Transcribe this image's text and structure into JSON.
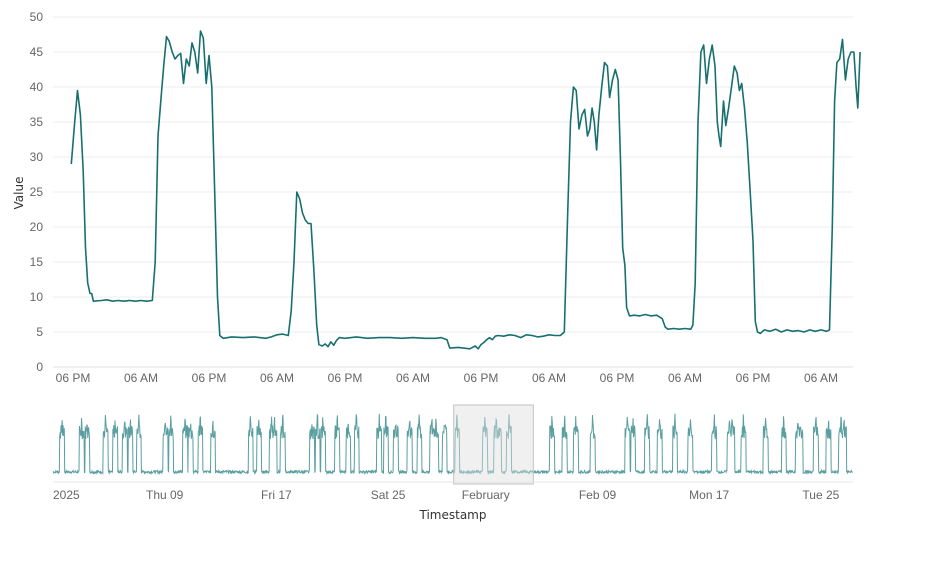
{
  "chart_data": [
    {
      "type": "line",
      "ylabel": "Value",
      "ylim": [
        0,
        50
      ],
      "yticks": [
        0,
        5,
        10,
        15,
        20,
        25,
        30,
        35,
        40,
        45,
        50
      ],
      "xticks": [
        "06 PM",
        "06 AM",
        "06 PM",
        "06 AM",
        "06 PM",
        "06 AM",
        "06 PM",
        "06 AM",
        "06 PM",
        "06 AM",
        "06 PM",
        "06 AM"
      ],
      "x_hours": [
        0,
        12,
        24,
        36,
        48,
        60,
        72,
        84,
        96,
        108,
        120,
        132
      ],
      "grid": true,
      "color": "#17706f",
      "points": [
        [
          -0.3,
          29.0
        ],
        [
          0.3,
          35
        ],
        [
          0.8,
          39.5
        ],
        [
          1.3,
          36
        ],
        [
          1.8,
          28
        ],
        [
          2.2,
          17
        ],
        [
          2.6,
          12
        ],
        [
          3.0,
          10.5
        ],
        [
          3.3,
          10.5
        ],
        [
          3.6,
          9.4
        ],
        [
          5,
          9.5
        ],
        [
          6,
          9.6
        ],
        [
          7,
          9.4
        ],
        [
          8,
          9.5
        ],
        [
          9,
          9.4
        ],
        [
          10,
          9.5
        ],
        [
          11,
          9.4
        ],
        [
          12,
          9.5
        ],
        [
          13,
          9.4
        ],
        [
          14.0,
          9.5
        ],
        [
          14.5,
          15
        ],
        [
          15.0,
          33
        ],
        [
          15.5,
          38
        ],
        [
          16.0,
          43
        ],
        [
          16.5,
          47.2
        ],
        [
          17.0,
          46.5
        ],
        [
          17.5,
          45
        ],
        [
          18.0,
          44
        ],
        [
          18.5,
          44.5
        ],
        [
          19.0,
          44.8
        ],
        [
          19.5,
          40.5
        ],
        [
          20.0,
          44
        ],
        [
          20.5,
          43
        ],
        [
          21.0,
          46.3
        ],
        [
          21.5,
          45
        ],
        [
          22.0,
          42
        ],
        [
          22.5,
          48
        ],
        [
          23.0,
          47
        ],
        [
          23.5,
          40.5
        ],
        [
          24.0,
          44.5
        ],
        [
          24.5,
          40
        ],
        [
          25.0,
          25
        ],
        [
          25.5,
          10
        ],
        [
          25.9,
          4.5
        ],
        [
          26.5,
          4.1
        ],
        [
          28,
          4.3
        ],
        [
          30,
          4.2
        ],
        [
          32,
          4.3
        ],
        [
          34,
          4.1
        ],
        [
          35,
          4.3
        ],
        [
          36.0,
          4.6
        ],
        [
          37.0,
          4.7
        ],
        [
          38.0,
          4.5
        ],
        [
          38.5,
          8
        ],
        [
          39.0,
          15
        ],
        [
          39.5,
          25
        ],
        [
          40.0,
          24
        ],
        [
          40.5,
          22
        ],
        [
          41.0,
          21
        ],
        [
          41.5,
          20.5
        ],
        [
          42.0,
          20.5
        ],
        [
          42.5,
          14
        ],
        [
          43.0,
          6
        ],
        [
          43.4,
          3.2
        ],
        [
          44.0,
          3.0
        ],
        [
          44.5,
          3.3
        ],
        [
          45.0,
          2.9
        ],
        [
          45.5,
          3.6
        ],
        [
          46.0,
          3.1
        ],
        [
          46.5,
          3.8
        ],
        [
          47.0,
          4.2
        ],
        [
          48.0,
          4.1
        ],
        [
          50,
          4.3
        ],
        [
          52,
          4.1
        ],
        [
          54,
          4.2
        ],
        [
          56,
          4.2
        ],
        [
          58,
          4.1
        ],
        [
          60,
          4.2
        ],
        [
          62,
          4.1
        ],
        [
          64,
          4.1
        ],
        [
          65.0,
          4.2
        ],
        [
          66.0,
          3.9
        ],
        [
          66.5,
          2.7
        ],
        [
          68,
          2.8
        ],
        [
          70,
          2.6
        ],
        [
          71.0,
          3.0
        ],
        [
          71.5,
          2.6
        ],
        [
          72.0,
          3.2
        ],
        [
          72.5,
          3.5
        ],
        [
          73.0,
          3.9
        ],
        [
          73.5,
          4.2
        ],
        [
          74.0,
          3.9
        ],
        [
          74.5,
          4.4
        ],
        [
          75.0,
          4.5
        ],
        [
          76.0,
          4.4
        ],
        [
          77.0,
          4.6
        ],
        [
          78.0,
          4.5
        ],
        [
          79.0,
          4.2
        ],
        [
          80.0,
          4.6
        ],
        [
          81.0,
          4.5
        ],
        [
          82.0,
          4.3
        ],
        [
          83.0,
          4.4
        ],
        [
          84.0,
          4.6
        ],
        [
          85.0,
          4.5
        ],
        [
          86.0,
          4.5
        ],
        [
          86.7,
          5.0
        ],
        [
          87.3,
          22
        ],
        [
          87.8,
          35
        ],
        [
          88.3,
          40
        ],
        [
          88.8,
          39.5
        ],
        [
          89.3,
          34
        ],
        [
          89.8,
          36
        ],
        [
          90.3,
          36.8
        ],
        [
          90.8,
          33
        ],
        [
          91.2,
          34
        ],
        [
          91.6,
          37
        ],
        [
          92.0,
          35
        ],
        [
          92.4,
          31
        ],
        [
          92.8,
          36
        ],
        [
          93.3,
          40
        ],
        [
          93.8,
          43.5
        ],
        [
          94.3,
          43
        ],
        [
          94.7,
          38.5
        ],
        [
          95.2,
          41
        ],
        [
          95.7,
          42.5
        ],
        [
          96.2,
          41
        ],
        [
          96.6,
          30
        ],
        [
          97.0,
          17
        ],
        [
          97.4,
          14.5
        ],
        [
          97.7,
          8.5
        ],
        [
          98.2,
          7.3
        ],
        [
          99,
          7.4
        ],
        [
          100,
          7.3
        ],
        [
          101,
          7.5
        ],
        [
          102,
          7.3
        ],
        [
          103,
          7.4
        ],
        [
          104,
          6.9
        ],
        [
          104.5,
          5.7
        ],
        [
          105,
          5.4
        ],
        [
          106,
          5.5
        ],
        [
          107,
          5.4
        ],
        [
          108,
          5.5
        ],
        [
          109,
          5.4
        ],
        [
          109.4,
          6
        ],
        [
          109.8,
          12
        ],
        [
          110.3,
          35
        ],
        [
          110.8,
          45
        ],
        [
          111.3,
          46
        ],
        [
          111.8,
          40.5
        ],
        [
          112.3,
          44
        ],
        [
          112.8,
          46
        ],
        [
          113.3,
          43
        ],
        [
          113.7,
          35
        ],
        [
          114.0,
          33
        ],
        [
          114.3,
          31.5
        ],
        [
          114.8,
          38
        ],
        [
          115.2,
          34.5
        ],
        [
          115.7,
          37
        ],
        [
          116.2,
          40
        ],
        [
          116.7,
          43
        ],
        [
          117.2,
          42
        ],
        [
          117.6,
          39.5
        ],
        [
          118.0,
          40.5
        ],
        [
          118.5,
          37
        ],
        [
          119.0,
          32
        ],
        [
          119.5,
          25
        ],
        [
          120.0,
          18
        ],
        [
          120.4,
          6.5
        ],
        [
          120.8,
          5.0
        ],
        [
          121.3,
          4.8
        ],
        [
          122,
          5.3
        ],
        [
          123,
          5.1
        ],
        [
          124,
          5.4
        ],
        [
          125,
          5.0
        ],
        [
          126,
          5.3
        ],
        [
          127,
          5.1
        ],
        [
          128,
          5.2
        ],
        [
          129,
          5.0
        ],
        [
          130,
          5.3
        ],
        [
          131,
          5.1
        ],
        [
          132,
          5.3
        ],
        [
          133,
          5.1
        ],
        [
          133.5,
          5.3
        ],
        [
          134.0,
          20
        ],
        [
          134.4,
          38
        ],
        [
          134.8,
          43.5
        ],
        [
          135.3,
          44
        ],
        [
          135.8,
          46.8
        ],
        [
          136.3,
          41
        ],
        [
          136.8,
          44
        ],
        [
          137.3,
          45
        ],
        [
          137.8,
          45
        ],
        [
          138.2,
          40
        ],
        [
          138.5,
          37
        ],
        [
          138.9,
          45
        ]
      ]
    },
    {
      "type": "area",
      "xlabel": "Timestamp",
      "xticks": [
        "2025",
        "Thu 09",
        "Fri 17",
        "Sat 25",
        "February",
        "Feb 09",
        "Mon 17",
        "Tue 25"
      ],
      "x_days": [
        1,
        9,
        17,
        25,
        32,
        40,
        48,
        56
      ],
      "x_range_days": [
        1,
        58.3
      ],
      "selection_days": [
        29.7,
        35.4
      ],
      "color": "#5a9ea0"
    }
  ]
}
